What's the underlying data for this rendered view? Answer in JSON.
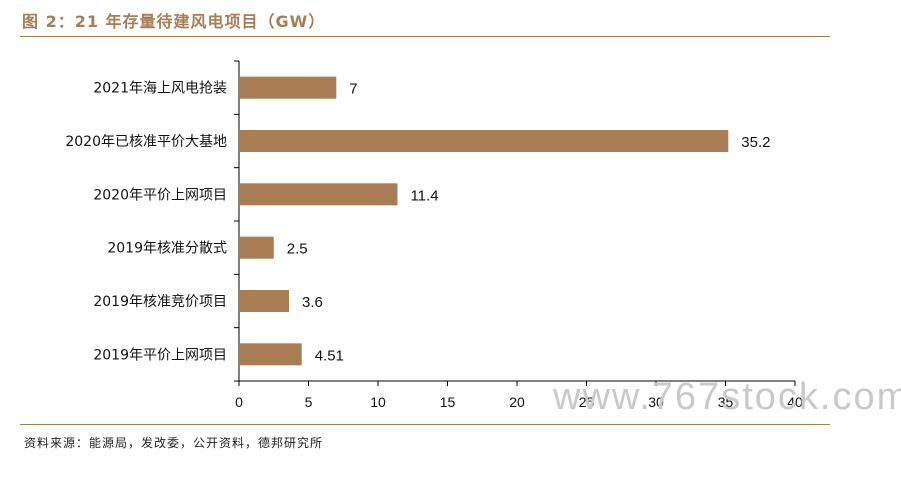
{
  "figure": {
    "title": "图 2：21 年存量待建风电项目（GW）",
    "source": "资料来源：能源局，发改委，公开资料，德邦研究所",
    "watermark": "www.767stock.com",
    "colors": {
      "bar": "#a87d53",
      "accent": "#a87d53",
      "axis": "#000000"
    }
  },
  "chart_data": {
    "type": "bar",
    "orientation": "horizontal",
    "categories": [
      "2021年海上风电抢装",
      "2020年已核准平价大基地",
      "2020年平价上网项目",
      "2019年核准分散式",
      "2019年核准竞价项目",
      "2019年平价上网项目"
    ],
    "values": [
      7,
      35.2,
      11.4,
      2.5,
      3.6,
      4.51
    ],
    "value_labels": [
      "7",
      "35.2",
      "11.4",
      "2.5",
      "3.6",
      "4.51"
    ],
    "xlim": [
      0,
      40
    ],
    "xticks": [
      0,
      5,
      10,
      15,
      20,
      25,
      30,
      35,
      40
    ],
    "xtick_labels": [
      "0",
      "5",
      "10",
      "15",
      "20",
      "25",
      "30",
      "35",
      "40"
    ],
    "xlabel": "",
    "ylabel": "",
    "grid": false,
    "legend": "none"
  }
}
